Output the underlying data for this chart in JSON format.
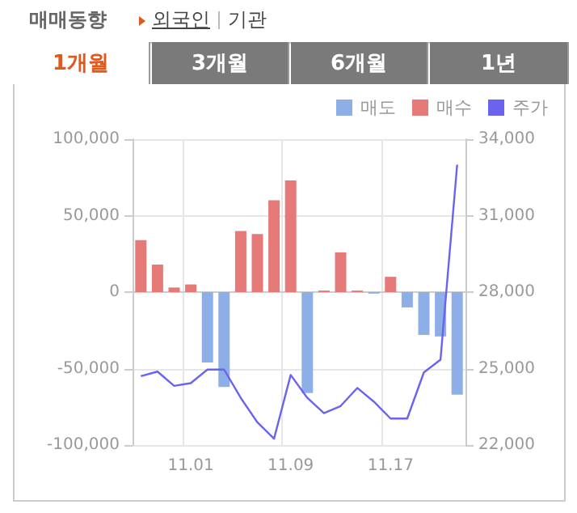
{
  "chart_data": {
    "type": "bar",
    "title": "매매동향",
    "annotations": [
      "외국인",
      "기관",
      "1개월",
      "3개월",
      "6개월",
      "1년"
    ],
    "categories": [
      null,
      null,
      null,
      "11.01",
      null,
      null,
      null,
      null,
      null,
      "11.09",
      null,
      null,
      null,
      null,
      null,
      "11.17",
      null,
      null,
      null,
      null
    ],
    "series": [
      {
        "name": "매도",
        "color": "#8eaee8",
        "values": [
          0,
          0,
          0,
          0,
          -46000,
          -62000,
          0,
          0,
          0,
          0,
          -66000,
          0,
          0,
          0,
          -1000,
          0,
          -10000,
          -28000,
          -29000,
          -67000
        ]
      },
      {
        "name": "매수",
        "color": "#e57a78",
        "values": [
          34000,
          18000,
          3000,
          5000,
          0,
          0,
          40000,
          38000,
          60000,
          73000,
          0,
          1000,
          26000,
          1000,
          0,
          10000,
          0,
          0,
          0,
          0
        ]
      },
      {
        "name": "주가",
        "type": "line",
        "axis": "y2",
        "color": "#6a63f0",
        "values": [
          24700,
          24880,
          24320,
          24430,
          24960,
          24960,
          23850,
          22890,
          22250,
          24750,
          23850,
          23250,
          23530,
          24240,
          23700,
          23040,
          23040,
          24850,
          25350,
          33000
        ]
      }
    ],
    "ylim": [
      -100000,
      100000
    ],
    "yticks": [
      {
        "value": -100000,
        "label": "-100,000"
      },
      {
        "value": -50000,
        "label": "-50,000"
      },
      0,
      {
        "value": 50000,
        "label": "50,000"
      },
      {
        "value": 100000,
        "label": "100,000"
      }
    ],
    "y2lim": [
      22000,
      34000
    ],
    "y2ticks": [
      {
        "value": 22000,
        "label": "22,000"
      },
      {
        "value": 25000,
        "label": "25,000"
      },
      {
        "value": 28000,
        "label": "28,000"
      },
      {
        "value": 31000,
        "label": "31,000"
      },
      {
        "value": 34000,
        "label": "34,000"
      }
    ],
    "grid": true,
    "legend": "top right",
    "marker": "none",
    "line_style": "solid"
  }
}
